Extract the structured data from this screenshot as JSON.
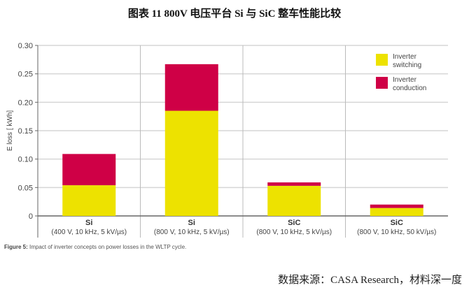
{
  "title": "图表 11 800V 电压平台 Si 与 SiC 整车性能比较",
  "caption_label": "Figure 5:",
  "caption_text": " Impact of inverter concepts on power losses in the WLTP cycle.",
  "source": "数据来源：CASA Research，材料深一度",
  "chart_data": {
    "type": "bar",
    "stacked": true,
    "title": "",
    "xlabel": "",
    "ylabel": "E loss [ kWh]",
    "ylim": [
      0,
      0.3
    ],
    "yticks": [
      0,
      0.05,
      0.1,
      0.15,
      0.2,
      0.25,
      0.3
    ],
    "ytick_labels": [
      "0",
      "0.05",
      "0.10",
      "0.15",
      "0.20",
      "0.25",
      "0.30"
    ],
    "grid": true,
    "legend_position": "top-right",
    "categories": [
      {
        "name": "Si",
        "sub": "(400 V, 10 kHz, 5 kV/µs)"
      },
      {
        "name": "Si",
        "sub": "(800 V, 10 kHz, 5 kV/µs)"
      },
      {
        "name": "SiC",
        "sub": "(800 V, 10 kHz, 5 kV/µs)"
      },
      {
        "name": "SiC",
        "sub": "(800 V, 10 kHz, 50 kV/µs)"
      }
    ],
    "series": [
      {
        "name": "Inverter switching",
        "name_lines": [
          "Inverter",
          "switching"
        ],
        "color": "#ede200",
        "values": [
          0.054,
          0.185,
          0.053,
          0.014
        ]
      },
      {
        "name": "Inverter conduction",
        "name_lines": [
          "Inverter",
          "conduction"
        ],
        "color": "#cf0046",
        "values": [
          0.055,
          0.082,
          0.006,
          0.006
        ]
      }
    ]
  }
}
